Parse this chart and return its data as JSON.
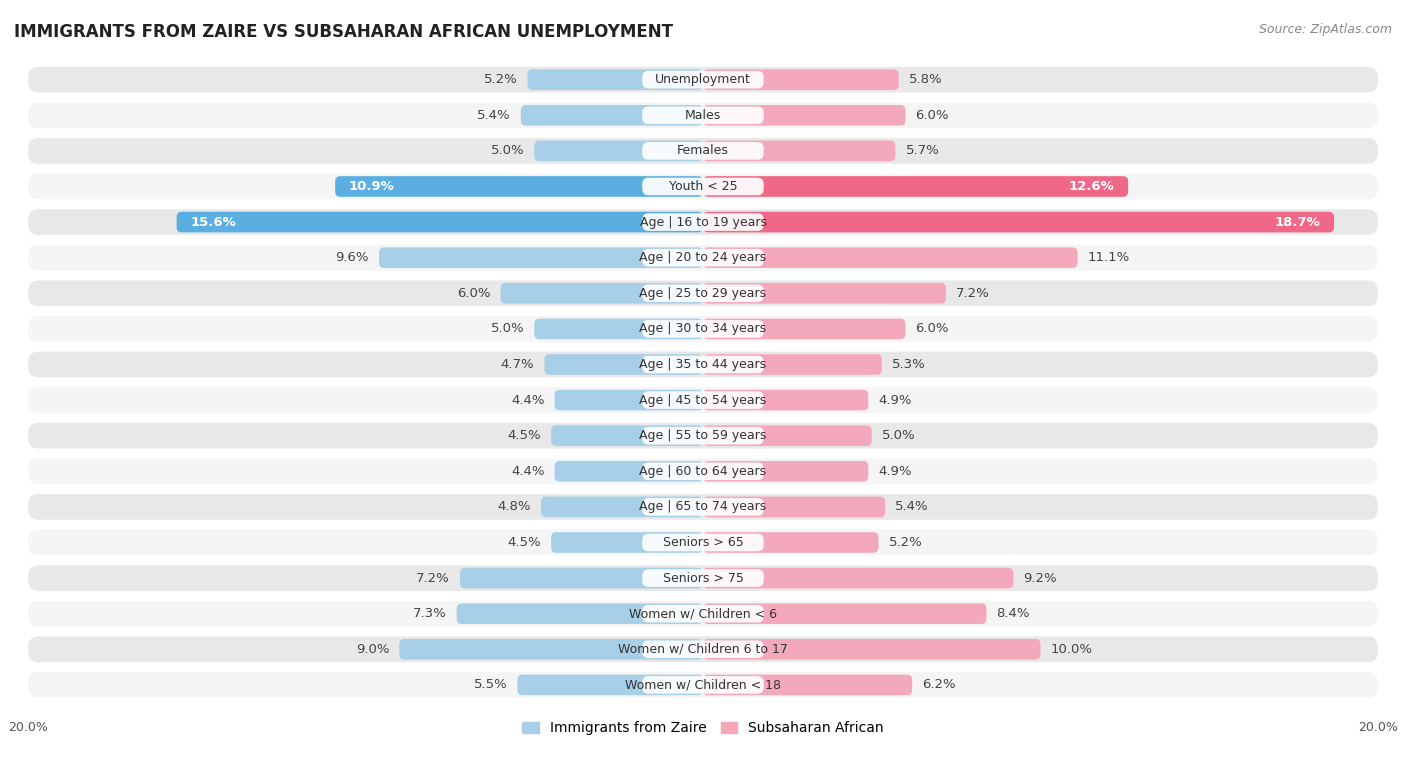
{
  "title": "IMMIGRANTS FROM ZAIRE VS SUBSAHARAN AFRICAN UNEMPLOYMENT",
  "source": "Source: ZipAtlas.com",
  "categories": [
    "Unemployment",
    "Males",
    "Females",
    "Youth < 25",
    "Age | 16 to 19 years",
    "Age | 20 to 24 years",
    "Age | 25 to 29 years",
    "Age | 30 to 34 years",
    "Age | 35 to 44 years",
    "Age | 45 to 54 years",
    "Age | 55 to 59 years",
    "Age | 60 to 64 years",
    "Age | 65 to 74 years",
    "Seniors > 65",
    "Seniors > 75",
    "Women w/ Children < 6",
    "Women w/ Children 6 to 17",
    "Women w/ Children < 18"
  ],
  "zaire_values": [
    5.2,
    5.4,
    5.0,
    10.9,
    15.6,
    9.6,
    6.0,
    5.0,
    4.7,
    4.4,
    4.5,
    4.4,
    4.8,
    4.5,
    7.2,
    7.3,
    9.0,
    5.5
  ],
  "subsaharan_values": [
    5.8,
    6.0,
    5.7,
    12.6,
    18.7,
    11.1,
    7.2,
    6.0,
    5.3,
    4.9,
    5.0,
    4.9,
    5.4,
    5.2,
    9.2,
    8.4,
    10.0,
    6.2
  ],
  "zaire_color": "#a8cfe8",
  "subsaharan_color": "#f4a8bc",
  "zaire_highlight_color": "#5baee0",
  "subsaharan_highlight_color": "#f06888",
  "highlight_rows": [
    3,
    4
  ],
  "x_max": 20.0,
  "bg_color_odd": "#e8e8e8",
  "bg_color_even": "#f5f5f5",
  "legend_label_zaire": "Immigrants from Zaire",
  "legend_label_subsaharan": "Subsaharan African",
  "title_fontsize": 12,
  "source_fontsize": 9,
  "label_fontsize": 9.5,
  "category_fontsize": 9
}
